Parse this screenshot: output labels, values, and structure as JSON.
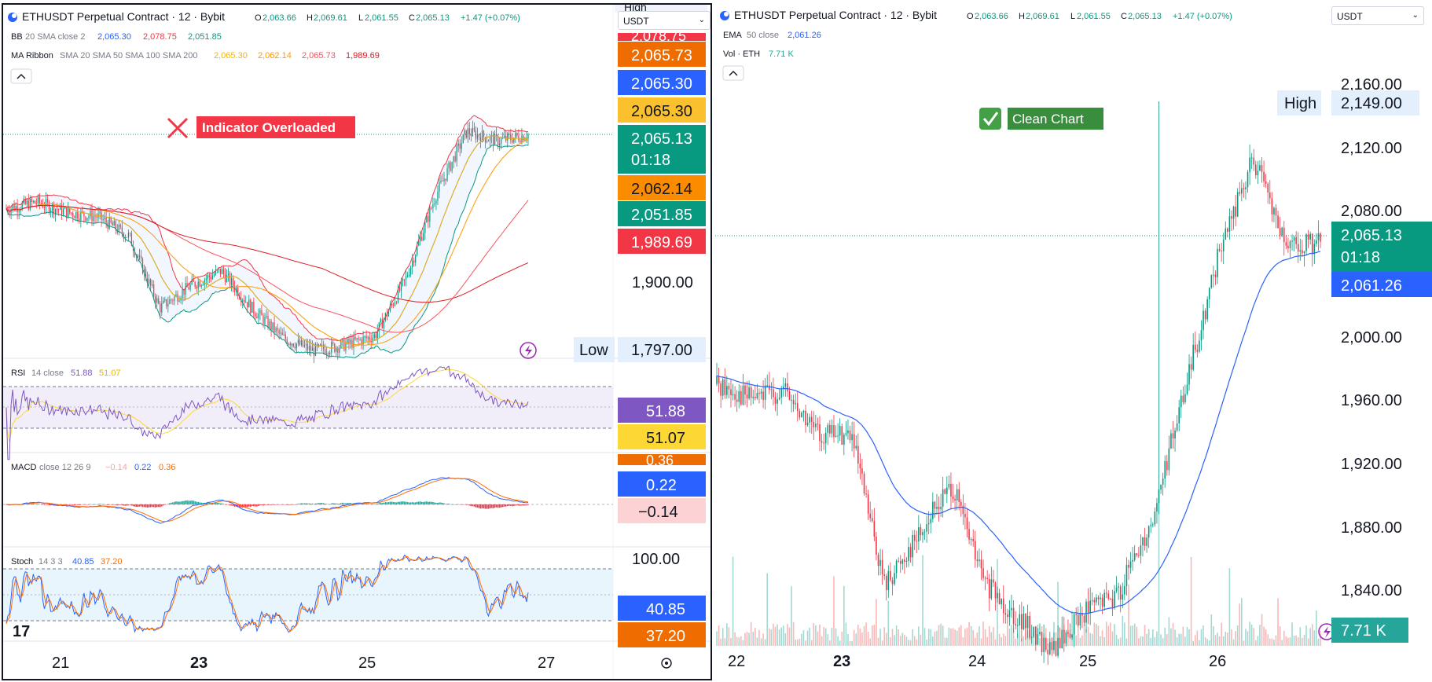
{
  "left": {
    "title": "ETHUSDT Perpetual Contract · 12 · Bybit",
    "ohlc": {
      "o_label": "O",
      "o": "2,063.66",
      "h_label": "H",
      "h": "2,069.61",
      "l_label": "L",
      "l": "2,061.55",
      "c_label": "C",
      "c": "2,065.13",
      "change": "+1.47 (+0.07%)"
    },
    "indicators": [
      {
        "name": "BB",
        "params": "20 SMA close 2",
        "values": [
          "2,065.30",
          "2,078.75",
          "2,051.85"
        ],
        "colors": [
          "#2962ff",
          "#f23645",
          "#089981"
        ]
      },
      {
        "name": "MA Ribbon",
        "params": "SMA 20 SMA 50 SMA 100 SMA 200",
        "values": [
          "2,065.30",
          "2,062.14",
          "2,065.73",
          "1,989.69"
        ],
        "colors": [
          "#f7b500",
          "#ff9800",
          "#f7525f",
          "#e01b24"
        ]
      }
    ],
    "currency": "USDT",
    "annotation": "Indicator Overloaded",
    "price_labels": [
      {
        "text": "2,078.75",
        "bg": "#f23645"
      },
      {
        "text": "2,065.73",
        "bg": "#ef6c00"
      },
      {
        "text": "2,065.30",
        "bg": "#2962ff"
      },
      {
        "text": "2,065.30",
        "bg": "#fbc02d"
      },
      {
        "text": "2,065.13",
        "bg": "#089981"
      },
      {
        "text": "2,062.14",
        "bg": "#fb8c00"
      },
      {
        "text": "2,051.85",
        "bg": "#089981"
      },
      {
        "text": "1,989.69",
        "bg": "#f23645"
      }
    ],
    "countdown": "01:18",
    "axis_price": "1,900.00",
    "high_label": "High",
    "low_label": "Low",
    "low_value": "1,797.00",
    "rsi": {
      "name": "RSI",
      "params": "14 close",
      "v1": "51.88",
      "v2": "51.07",
      "c1": "#7e57c2",
      "c2": "#fdd835"
    },
    "macd": {
      "name": "MACD",
      "params": "close 12 26 9",
      "v_hist": "−0.14",
      "v_macd": "0.22",
      "v_signal": "0.36",
      "c_macd": "#2962ff",
      "c_signal": "#ff6d00",
      "c_hist": "#f7525f"
    },
    "stoch": {
      "name": "Stoch",
      "params": "14 3 3",
      "k": "40.85",
      "d": "37.20",
      "c_k": "#2962ff",
      "c_d": "#ff6d00",
      "axis": "100.00"
    },
    "dates": [
      "21",
      "23",
      "25",
      "27"
    ],
    "logo": "17"
  },
  "right": {
    "title": "ETHUSDT Perpetual Contract · 12 · Bybit",
    "ohlc": {
      "o_label": "O",
      "o": "2,063.66",
      "h_label": "H",
      "h": "2,069.61",
      "l_label": "L",
      "l": "2,061.55",
      "c_label": "C",
      "c": "2,065.13",
      "change": "+1.47 (+0.07%)"
    },
    "ema": {
      "name": "EMA",
      "params": "50 close",
      "value": "2,061.26",
      "color": "#2962ff"
    },
    "vol": {
      "name": "Vol · ETH",
      "value": "7.71 K",
      "color": "#26a69a"
    },
    "currency": "USDT",
    "annotation": "Clean Chart",
    "high_label": "High",
    "high_value": "2,149.00",
    "current_price": "2,065.13",
    "countdown": "01:18",
    "axis": [
      "2,160.00",
      "2,120.00",
      "2,080.00",
      "2,000.00",
      "1,960.00",
      "1,920.00",
      "1,880.00",
      "1,840.00"
    ],
    "dates": [
      "22",
      "23",
      "24",
      "25",
      "26"
    ]
  },
  "chart_data": [
    {
      "type": "candlestick",
      "title": "ETHUSDT Perpetual Contract · 12 · Bybit",
      "overlays": [
        "BB 20 SMA close 2",
        "MA Ribbon SMA 20 SMA 50 SMA 100 SMA 200"
      ],
      "panes": [
        "RSI 14 close",
        "MACD close 12 26 9",
        "Stoch 14 3 3"
      ],
      "close_path": [
        {
          "x": "20.8",
          "y": 1985
        },
        {
          "x": "21.4",
          "y": 1992
        },
        {
          "x": "22.0",
          "y": 1981
        },
        {
          "x": "22.6",
          "y": 1976
        },
        {
          "x": "22.9",
          "y": 1955
        },
        {
          "x": "23.2",
          "y": 1878
        },
        {
          "x": "23.5",
          "y": 1902
        },
        {
          "x": "23.8",
          "y": 1918
        },
        {
          "x": "24.1",
          "y": 1878
        },
        {
          "x": "24.4",
          "y": 1846
        },
        {
          "x": "24.7",
          "y": 1832
        },
        {
          "x": "25.0",
          "y": 1838
        },
        {
          "x": "25.3",
          "y": 1848
        },
        {
          "x": "25.6",
          "y": 1908
        },
        {
          "x": "25.9",
          "y": 2000
        },
        {
          "x": "26.2",
          "y": 2068
        },
        {
          "x": "26.5",
          "y": 2058
        },
        {
          "x": "26.8",
          "y": 2065
        }
      ],
      "y_axis_labels": [
        "1,900.00"
      ],
      "x_axis_labels": [
        "21",
        "23",
        "25",
        "27"
      ]
    },
    {
      "type": "candlestick",
      "title": "ETHUSDT Perpetual Contract · 12 · Bybit",
      "overlays": [
        "EMA 50 close"
      ],
      "panes": [
        "Vol · ETH"
      ],
      "close_path": [
        {
          "x": "21.8",
          "y": 1980
        },
        {
          "x": "22.2",
          "y": 1972
        },
        {
          "x": "22.6",
          "y": 1976
        },
        {
          "x": "22.9",
          "y": 1950
        },
        {
          "x": "23.1",
          "y": 1950
        },
        {
          "x": "23.3",
          "y": 1860
        },
        {
          "x": "23.6",
          "y": 1890
        },
        {
          "x": "23.8",
          "y": 1920
        },
        {
          "x": "24.1",
          "y": 1860
        },
        {
          "x": "24.3",
          "y": 1840
        },
        {
          "x": "24.6",
          "y": 1820
        },
        {
          "x": "24.9",
          "y": 1845
        },
        {
          "x": "25.2",
          "y": 1855
        },
        {
          "x": "25.5",
          "y": 1900
        },
        {
          "x": "25.8",
          "y": 1980
        },
        {
          "x": "26.0",
          "y": 2060
        },
        {
          "x": "26.2",
          "y": 2115
        },
        {
          "x": "26.4",
          "y": 2060
        },
        {
          "x": "26.7",
          "y": 2065
        }
      ],
      "high": 2149,
      "ylim": [
        1815,
        2172
      ],
      "y_axis_labels": [
        "2,160.00",
        "2,120.00",
        "2,080.00",
        "2,000.00",
        "1,960.00",
        "1,920.00",
        "1,880.00",
        "1,840.00"
      ],
      "x_axis_labels": [
        "22",
        "23",
        "24",
        "25",
        "26"
      ]
    }
  ]
}
